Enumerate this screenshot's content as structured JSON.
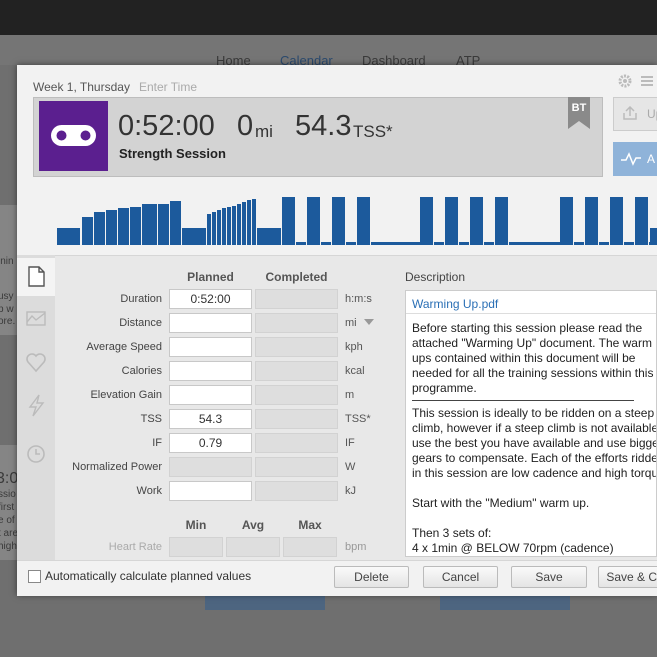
{
  "background": {
    "nav": [
      "Home",
      "Calendar",
      "Dashboard",
      "ATP"
    ],
    "fragments": [
      "inin",
      "usy",
      "p w",
      "ore.",
      "3:0",
      "ssio",
      "first",
      "e of",
      "t are",
      "high"
    ]
  },
  "header": {
    "day": "Week 1, Thursday",
    "time_placeholder": "Enter Time"
  },
  "summary": {
    "duration": "0:52:00",
    "distance": "0",
    "distance_unit": "mi",
    "tss": "54.3",
    "tss_unit": "TSS*",
    "title": "Strength Session",
    "badge": "BT"
  },
  "side_buttons": [
    "Up",
    "A"
  ],
  "form": {
    "columns": [
      "Planned",
      "Completed"
    ],
    "rows": [
      {
        "label": "Duration",
        "planned": "0:52:00",
        "unit": "h:m:s"
      },
      {
        "label": "Distance",
        "unit": "mi"
      },
      {
        "label": "Average Speed",
        "unit": "kph"
      },
      {
        "label": "Calories",
        "unit": "kcal"
      },
      {
        "label": "Elevation Gain",
        "unit": "m"
      },
      {
        "label": "TSS",
        "planned": "54.3",
        "unit": "TSS*"
      },
      {
        "label": "IF",
        "planned": "0.79",
        "unit": "IF"
      },
      {
        "label": "Normalized Power",
        "unit": "W",
        "planned_editable": false
      },
      {
        "label": "Work",
        "unit": "kJ"
      }
    ],
    "range_columns": [
      "Min",
      "Avg",
      "Max"
    ],
    "range_row": {
      "label": "Heart Rate",
      "unit": "bpm"
    }
  },
  "description": {
    "heading": "Description",
    "attachment": "Warming Up.pdf",
    "paragraphs": [
      [
        "Before starting this session please read the",
        "attached \"Warming Up\" document. The warm",
        "ups contained within this document will be",
        "needed for all the training sessions within this",
        "programme."
      ],
      [
        "This session is ideally to be ridden on a steep",
        "climb, however if a steep climb is not available",
        "use the best you have available and use bigge",
        "gears to compensate. Each of the efforts ridde",
        "in this session are low cadence and high torqu"
      ],
      [
        "Start with the \"Medium\" warm up."
      ],
      [
        "Then 3 sets of:",
        "4 x 1min @ BELOW 70rpm (cadence)"
      ]
    ]
  },
  "footer": {
    "checkbox_label": "Automatically calculate planned values",
    "buttons": [
      "Delete",
      "Cancel",
      "Save",
      "Save & Cl"
    ]
  }
}
